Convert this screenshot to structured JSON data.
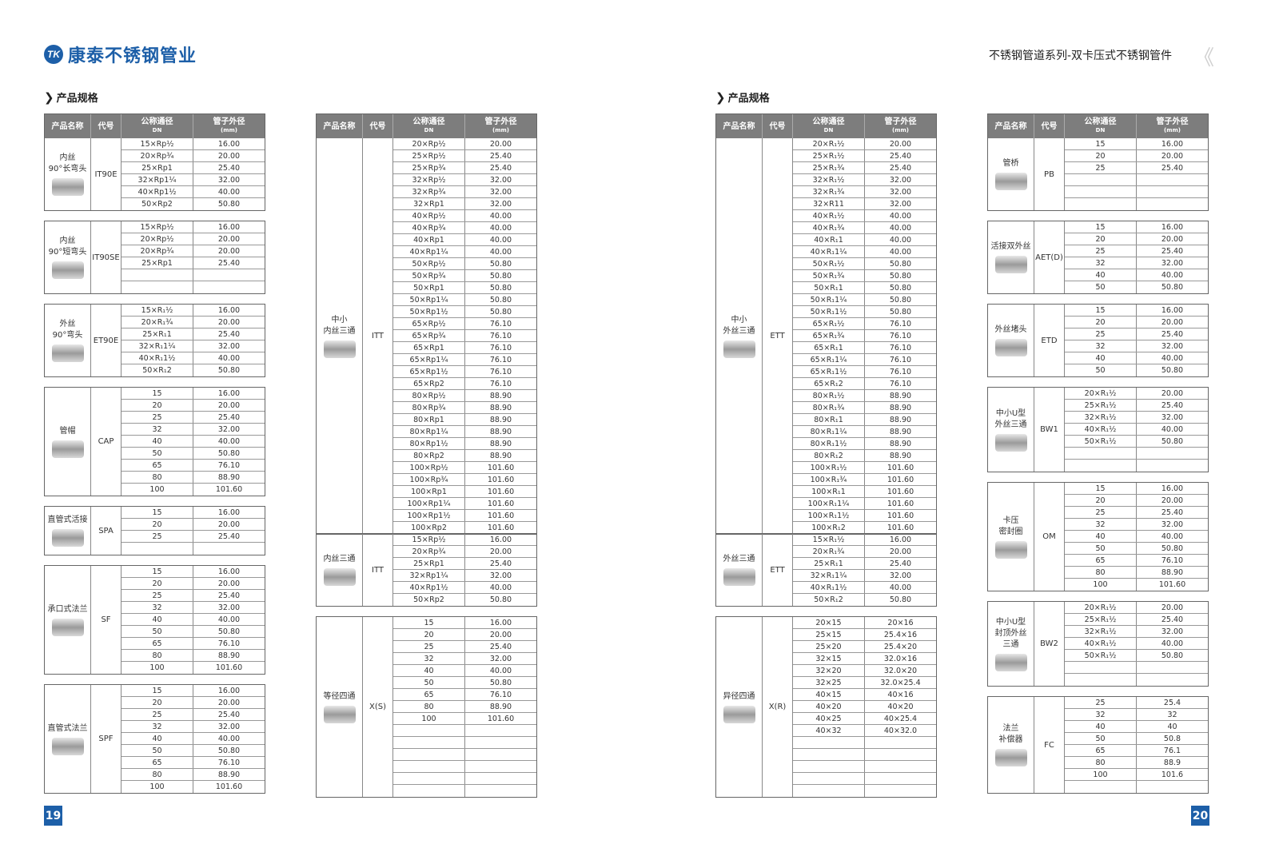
{
  "brand": {
    "logo_mark": "TK",
    "name": "康泰不锈钢管业",
    "color": "#1d5fa8"
  },
  "doc_title": "不锈钢管道系列-双卡压式不锈钢管件",
  "section_title": "产品规格",
  "headers": {
    "name": "产品名称",
    "code": "代号",
    "dn": "公称通径",
    "dn_sub": "DN",
    "od": "管子外径",
    "od_sub": "(mm)"
  },
  "page_numbers": {
    "left": "19",
    "right": "20"
  },
  "columns": [
    [
      {
        "name": "内丝\n90°长弯头",
        "code": "IT90E",
        "rows": [
          [
            "15×Rp½",
            "16.00"
          ],
          [
            "20×Rp¾",
            "20.00"
          ],
          [
            "25×Rp1",
            "25.40"
          ],
          [
            "32×Rp1¼",
            "32.00"
          ],
          [
            "40×Rp1½",
            "40.00"
          ],
          [
            "50×Rp2",
            "50.80"
          ]
        ]
      },
      {
        "name": "内丝\n90°短弯头",
        "code": "IT90SE",
        "rows": [
          [
            "15×Rp½",
            "16.00"
          ],
          [
            "20×Rp½",
            "20.00"
          ],
          [
            "20×Rp¾",
            "20.00"
          ],
          [
            "25×Rp1",
            "25.40"
          ],
          [
            "",
            ""
          ],
          [
            "",
            ""
          ]
        ]
      },
      {
        "name": "外丝\n90°弯头",
        "code": "ET90E",
        "rows": [
          [
            "15×R₁½",
            "16.00"
          ],
          [
            "20×R₁¾",
            "20.00"
          ],
          [
            "25×R₁1",
            "25.40"
          ],
          [
            "32×R₁1¼",
            "32.00"
          ],
          [
            "40×R₁1½",
            "40.00"
          ],
          [
            "50×R₁2",
            "50.80"
          ]
        ]
      },
      {
        "name": "管帽",
        "code": "CAP",
        "rows": [
          [
            "15",
            "16.00"
          ],
          [
            "20",
            "20.00"
          ],
          [
            "25",
            "25.40"
          ],
          [
            "32",
            "32.00"
          ],
          [
            "40",
            "40.00"
          ],
          [
            "50",
            "50.80"
          ],
          [
            "65",
            "76.10"
          ],
          [
            "80",
            "88.90"
          ],
          [
            "100",
            "101.60"
          ]
        ]
      },
      {
        "name": "直管式活接",
        "code": "SPA",
        "rows": [
          [
            "15",
            "16.00"
          ],
          [
            "20",
            "20.00"
          ],
          [
            "25",
            "25.40"
          ],
          [
            "",
            ""
          ]
        ]
      },
      {
        "name": "承口式法兰",
        "code": "SF",
        "rows": [
          [
            "15",
            "16.00"
          ],
          [
            "20",
            "20.00"
          ],
          [
            "25",
            "25.40"
          ],
          [
            "32",
            "32.00"
          ],
          [
            "40",
            "40.00"
          ],
          [
            "50",
            "50.80"
          ],
          [
            "65",
            "76.10"
          ],
          [
            "80",
            "88.90"
          ],
          [
            "100",
            "101.60"
          ]
        ]
      },
      {
        "name": "直管式法兰",
        "code": "SPF",
        "rows": [
          [
            "15",
            "16.00"
          ],
          [
            "20",
            "20.00"
          ],
          [
            "25",
            "25.40"
          ],
          [
            "32",
            "32.00"
          ],
          [
            "40",
            "40.00"
          ],
          [
            "50",
            "50.80"
          ],
          [
            "65",
            "76.10"
          ],
          [
            "80",
            "88.90"
          ],
          [
            "100",
            "101.60"
          ]
        ]
      }
    ],
    [
      {
        "name": "中小\n内丝三通",
        "code": "ITT",
        "rows": [
          [
            "20×Rp½",
            "20.00"
          ],
          [
            "25×Rp½",
            "25.40"
          ],
          [
            "25×Rp¾",
            "25.40"
          ],
          [
            "32×Rp½",
            "32.00"
          ],
          [
            "32×Rp¾",
            "32.00"
          ],
          [
            "32×Rp1",
            "32.00"
          ],
          [
            "40×Rp½",
            "40.00"
          ],
          [
            "40×Rp¾",
            "40.00"
          ],
          [
            "40×Rp1",
            "40.00"
          ],
          [
            "40×Rp1¼",
            "40.00"
          ],
          [
            "50×Rp½",
            "50.80"
          ],
          [
            "50×Rp¾",
            "50.80"
          ],
          [
            "50×Rp1",
            "50.80"
          ],
          [
            "50×Rp1¼",
            "50.80"
          ],
          [
            "50×Rp1½",
            "50.80"
          ],
          [
            "65×Rp½",
            "76.10"
          ],
          [
            "65×Rp¾",
            "76.10"
          ],
          [
            "65×Rp1",
            "76.10"
          ],
          [
            "65×Rp1¼",
            "76.10"
          ],
          [
            "65×Rp1½",
            "76.10"
          ],
          [
            "65×Rp2",
            "76.10"
          ],
          [
            "80×Rp½",
            "88.90"
          ],
          [
            "80×Rp¾",
            "88.90"
          ],
          [
            "80×Rp1",
            "88.90"
          ],
          [
            "80×Rp1¼",
            "88.90"
          ],
          [
            "80×Rp1½",
            "88.90"
          ],
          [
            "80×Rp2",
            "88.90"
          ],
          [
            "100×Rp½",
            "101.60"
          ],
          [
            "100×Rp¾",
            "101.60"
          ],
          [
            "100×Rp1",
            "101.60"
          ],
          [
            "100×Rp1¼",
            "101.60"
          ],
          [
            "100×Rp1½",
            "101.60"
          ],
          [
            "100×Rp2",
            "101.60"
          ]
        ]
      },
      {
        "name": "内丝三通",
        "code": "ITT",
        "joined": true,
        "rows": [
          [
            "15×Rp½",
            "16.00"
          ],
          [
            "20×Rp¾",
            "20.00"
          ],
          [
            "25×Rp1",
            "25.40"
          ],
          [
            "32×Rp1¼",
            "32.00"
          ],
          [
            "40×Rp1½",
            "40.00"
          ],
          [
            "50×Rp2",
            "50.80"
          ]
        ]
      },
      {
        "name": "等径四通",
        "code": "X(S)",
        "rows": [
          [
            "15",
            "16.00"
          ],
          [
            "20",
            "20.00"
          ],
          [
            "25",
            "25.40"
          ],
          [
            "32",
            "32.00"
          ],
          [
            "40",
            "40.00"
          ],
          [
            "50",
            "50.80"
          ],
          [
            "65",
            "76.10"
          ],
          [
            "80",
            "88.90"
          ],
          [
            "100",
            "101.60"
          ],
          [
            "",
            ""
          ],
          [
            "",
            ""
          ],
          [
            "",
            ""
          ],
          [
            "",
            ""
          ],
          [
            "",
            ""
          ],
          [
            "",
            ""
          ]
        ]
      }
    ],
    [
      {
        "name": "中小\n外丝三通",
        "code": "ETT",
        "rows": [
          [
            "20×R₁½",
            "20.00"
          ],
          [
            "25×R₁½",
            "25.40"
          ],
          [
            "25×R₁¾",
            "25.40"
          ],
          [
            "32×R₁½",
            "32.00"
          ],
          [
            "32×R₁¾",
            "32.00"
          ],
          [
            "32×R11",
            "32.00"
          ],
          [
            "40×R₁½",
            "40.00"
          ],
          [
            "40×R₁¾",
            "40.00"
          ],
          [
            "40×R₁1",
            "40.00"
          ],
          [
            "40×R₁1¼",
            "40.00"
          ],
          [
            "50×R₁½",
            "50.80"
          ],
          [
            "50×R₁¾",
            "50.80"
          ],
          [
            "50×R₁1",
            "50.80"
          ],
          [
            "50×R₁1¼",
            "50.80"
          ],
          [
            "50×R₁1½",
            "50.80"
          ],
          [
            "65×R₁½",
            "76.10"
          ],
          [
            "65×R₁¾",
            "76.10"
          ],
          [
            "65×R₁1",
            "76.10"
          ],
          [
            "65×R₁1¼",
            "76.10"
          ],
          [
            "65×R₁1½",
            "76.10"
          ],
          [
            "65×R₁2",
            "76.10"
          ],
          [
            "80×R₁½",
            "88.90"
          ],
          [
            "80×R₁¾",
            "88.90"
          ],
          [
            "80×R₁1",
            "88.90"
          ],
          [
            "80×R₁1¼",
            "88.90"
          ],
          [
            "80×R₁1½",
            "88.90"
          ],
          [
            "80×R₁2",
            "88.90"
          ],
          [
            "100×R₁½",
            "101.60"
          ],
          [
            "100×R₁¾",
            "101.60"
          ],
          [
            "100×R₁1",
            "101.60"
          ],
          [
            "100×R₁1¼",
            "101.60"
          ],
          [
            "100×R₁1½",
            "101.60"
          ],
          [
            "100×R₁2",
            "101.60"
          ]
        ]
      },
      {
        "name": "外丝三通",
        "code": "ETT",
        "joined": true,
        "rows": [
          [
            "15×R₁½",
            "16.00"
          ],
          [
            "20×R₁¾",
            "20.00"
          ],
          [
            "25×R₁1",
            "25.40"
          ],
          [
            "32×R₁1¼",
            "32.00"
          ],
          [
            "40×R₁1½",
            "40.00"
          ],
          [
            "50×R₁2",
            "50.80"
          ]
        ]
      },
      {
        "name": "异径四通",
        "code": "X(R)",
        "rows": [
          [
            "20×15",
            "20×16"
          ],
          [
            "25×15",
            "25.4×16"
          ],
          [
            "25×20",
            "25.4×20"
          ],
          [
            "32×15",
            "32.0×16"
          ],
          [
            "32×20",
            "32.0×20"
          ],
          [
            "32×25",
            "32.0×25.4"
          ],
          [
            "40×15",
            "40×16"
          ],
          [
            "40×20",
            "40×20"
          ],
          [
            "40×25",
            "40×25.4"
          ],
          [
            "40×32",
            "40×32.0"
          ],
          [
            "",
            ""
          ],
          [
            "",
            ""
          ],
          [
            "",
            ""
          ],
          [
            "",
            ""
          ],
          [
            "",
            ""
          ]
        ]
      }
    ],
    [
      {
        "name": "管桥",
        "code": "PB",
        "rows": [
          [
            "15",
            "16.00"
          ],
          [
            "20",
            "20.00"
          ],
          [
            "25",
            "25.40"
          ],
          [
            "",
            ""
          ],
          [
            "",
            ""
          ],
          [
            "",
            ""
          ]
        ]
      },
      {
        "name": "活接双外丝",
        "code": "AET(D)",
        "rows": [
          [
            "15",
            "16.00"
          ],
          [
            "20",
            "20.00"
          ],
          [
            "25",
            "25.40"
          ],
          [
            "32",
            "32.00"
          ],
          [
            "40",
            "40.00"
          ],
          [
            "50",
            "50.80"
          ]
        ]
      },
      {
        "name": "外丝堵头",
        "code": "ETD",
        "rows": [
          [
            "15",
            "16.00"
          ],
          [
            "20",
            "20.00"
          ],
          [
            "25",
            "25.40"
          ],
          [
            "32",
            "32.00"
          ],
          [
            "40",
            "40.00"
          ],
          [
            "50",
            "50.80"
          ]
        ]
      },
      {
        "name": "中小U型\n外丝三通",
        "code": "BW1",
        "rows": [
          [
            "20×R₁½",
            "20.00"
          ],
          [
            "25×R₁½",
            "25.40"
          ],
          [
            "32×R₁½",
            "32.00"
          ],
          [
            "40×R₁½",
            "40.00"
          ],
          [
            "50×R₁½",
            "50.80"
          ],
          [
            "",
            ""
          ],
          [
            "",
            ""
          ]
        ]
      },
      {
        "name": "卡压\n密封圈",
        "code": "OM",
        "rows": [
          [
            "15",
            "16.00"
          ],
          [
            "20",
            "20.00"
          ],
          [
            "25",
            "25.40"
          ],
          [
            "32",
            "32.00"
          ],
          [
            "40",
            "40.00"
          ],
          [
            "50",
            "50.80"
          ],
          [
            "65",
            "76.10"
          ],
          [
            "80",
            "88.90"
          ],
          [
            "100",
            "101.60"
          ]
        ]
      },
      {
        "name": "中小U型\n封顶外丝\n三通",
        "code": "BW2",
        "rows": [
          [
            "20×R₁½",
            "20.00"
          ],
          [
            "25×R₁½",
            "25.40"
          ],
          [
            "32×R₁½",
            "32.00"
          ],
          [
            "40×R₁½",
            "40.00"
          ],
          [
            "50×R₁½",
            "50.80"
          ],
          [
            "",
            ""
          ],
          [
            "",
            ""
          ]
        ]
      },
      {
        "name": "法兰\n补偿器",
        "code": "FC",
        "rows": [
          [
            "25",
            "25.4"
          ],
          [
            "32",
            "32"
          ],
          [
            "40",
            "40"
          ],
          [
            "50",
            "50.8"
          ],
          [
            "65",
            "76.1"
          ],
          [
            "80",
            "88.9"
          ],
          [
            "100",
            "101.6"
          ],
          [
            "",
            ""
          ]
        ]
      }
    ]
  ]
}
